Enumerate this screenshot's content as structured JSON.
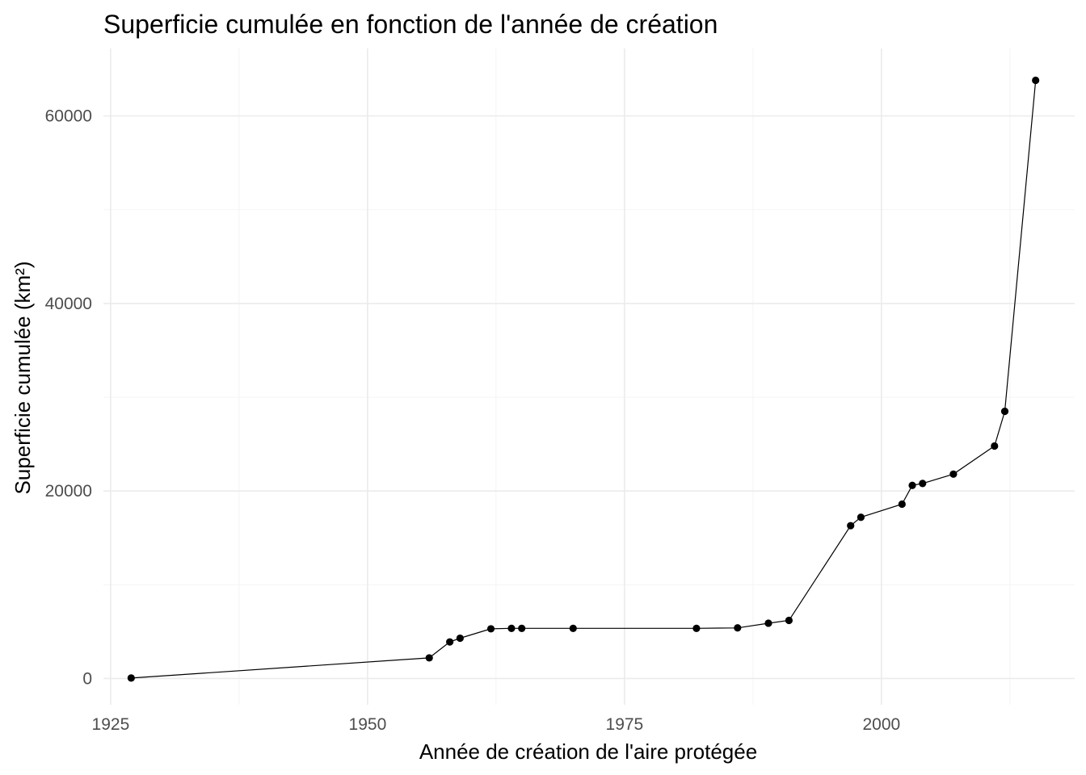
{
  "chart_data": {
    "type": "line",
    "title": "Superficie cumulée en fonction de l'année de création",
    "xlabel": "Année de création de l'aire protégée",
    "ylabel": "Superficie cumulée (km²)",
    "xlim": [
      1924.3,
      2018.8
    ],
    "ylim": [
      -2800,
      67200
    ],
    "x_ticks": [
      1925,
      1950,
      1975,
      2000
    ],
    "x_minor_ticks": [
      1937.5,
      1962.5,
      1987.5,
      2012.5
    ],
    "y_ticks": [
      0,
      20000,
      40000,
      60000
    ],
    "y_minor_ticks": [
      10000,
      30000,
      50000
    ],
    "x_tick_labels": [
      "1925",
      "1950",
      "1975",
      "2000"
    ],
    "y_tick_labels": [
      "0",
      "20000",
      "40000",
      "60000"
    ],
    "grid": true,
    "series": [
      {
        "x": [
          1927,
          1956,
          1958,
          1959,
          1962,
          1964,
          1965,
          1970,
          1982,
          1986,
          1989,
          1991,
          1997,
          1998,
          2002,
          2003,
          2004,
          2007,
          2011,
          2012,
          2015
        ],
        "y": [
          50,
          2200,
          3900,
          4300,
          5300,
          5350,
          5350,
          5350,
          5350,
          5400,
          5900,
          6200,
          16300,
          17200,
          18600,
          20600,
          20800,
          21800,
          24800,
          28500,
          63800
        ]
      }
    ]
  }
}
